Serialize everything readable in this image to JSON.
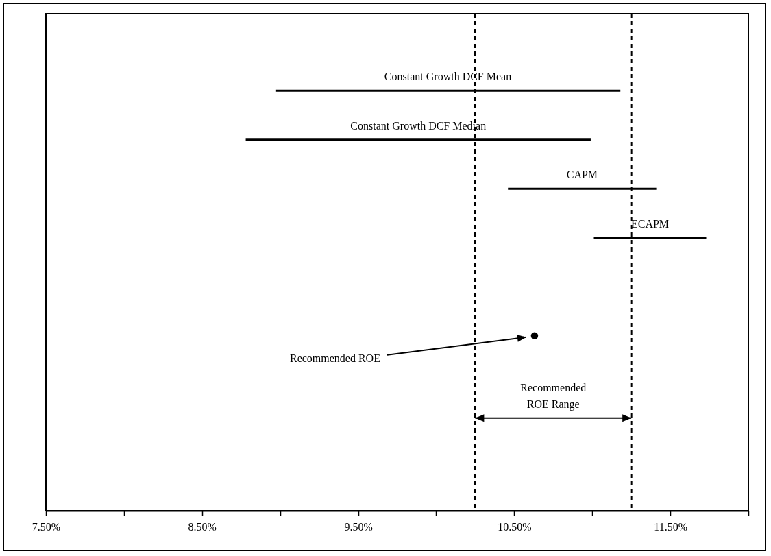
{
  "chart_data": {
    "type": "bar",
    "orientation": "horizontal",
    "categories": [
      null,
      null,
      null,
      null,
      null,
      null,
      null,
      null,
      null,
      null
    ],
    "series": [
      {
        "name": "Constant Growth DCF Mean",
        "color": "#000000",
        "base": [
          null,
          8.97,
          null,
          null,
          null,
          null,
          null,
          null,
          null,
          null
        ],
        "values": [
          null,
          2.21,
          null,
          null,
          null,
          null,
          null,
          null,
          null,
          null
        ]
      },
      {
        "name": "Constant Growth DCF Median",
        "color": "#000000",
        "base": [
          null,
          null,
          8.78,
          null,
          null,
          null,
          null,
          null,
          null,
          null
        ],
        "values": [
          null,
          null,
          2.21,
          null,
          null,
          null,
          null,
          null,
          null,
          null
        ]
      },
      {
        "name": "CAPM",
        "color": "#000000",
        "base": [
          null,
          null,
          null,
          10.46,
          null,
          null,
          null,
          null,
          null,
          null
        ],
        "values": [
          null,
          null,
          null,
          0.95,
          null,
          null,
          null,
          null,
          null,
          null
        ]
      },
      {
        "name": "ECAPM",
        "color": "#000000",
        "base": [
          null,
          null,
          null,
          null,
          11.01,
          null,
          null,
          null,
          null,
          null
        ],
        "values": [
          null,
          null,
          null,
          null,
          0.72,
          null,
          null,
          null,
          null,
          null
        ]
      },
      {
        "type": "scatter",
        "name": "Recommended ROE",
        "color": "#000000",
        "marker": "circle",
        "values": [
          null,
          null,
          null,
          null,
          null,
          null,
          10.63,
          null,
          null,
          null
        ]
      }
    ],
    "xlim": [
      7.5,
      12.0
    ],
    "xticks": [
      {
        "value": 7.5,
        "label": "7.50%"
      },
      {
        "value": 8.0,
        "label": null
      },
      {
        "value": 8.5,
        "label": "8.50%"
      },
      {
        "value": 9.0,
        "label": null
      },
      {
        "value": 9.5,
        "label": "9.50%"
      },
      {
        "value": 10.0,
        "label": null
      },
      {
        "value": 10.5,
        "label": "10.50%"
      },
      {
        "value": 11.0,
        "label": null
      },
      {
        "value": 11.5,
        "label": "11.50%"
      },
      {
        "value": 12.0,
        "label": null
      }
    ],
    "tick_labels": "x",
    "ref_lines": [
      {
        "axis": "x",
        "value": 10.25,
        "label": null,
        "color": "#000000",
        "line_style": "dashed"
      },
      {
        "axis": "x",
        "value": 11.25,
        "label": null,
        "color": "#000000",
        "line_style": "dashed"
      }
    ],
    "annotations": [
      "Recommended ROE Range"
    ]
  }
}
